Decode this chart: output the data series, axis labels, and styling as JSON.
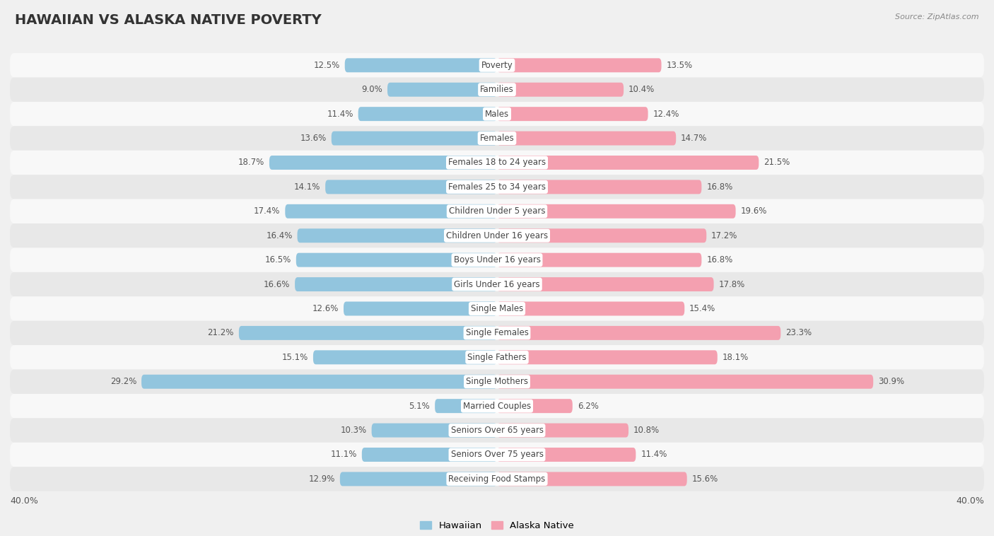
{
  "title": "HAWAIIAN VS ALASKA NATIVE POVERTY",
  "source": "Source: ZipAtlas.com",
  "categories": [
    "Poverty",
    "Families",
    "Males",
    "Females",
    "Females 18 to 24 years",
    "Females 25 to 34 years",
    "Children Under 5 years",
    "Children Under 16 years",
    "Boys Under 16 years",
    "Girls Under 16 years",
    "Single Males",
    "Single Females",
    "Single Fathers",
    "Single Mothers",
    "Married Couples",
    "Seniors Over 65 years",
    "Seniors Over 75 years",
    "Receiving Food Stamps"
  ],
  "hawaiian": [
    12.5,
    9.0,
    11.4,
    13.6,
    18.7,
    14.1,
    17.4,
    16.4,
    16.5,
    16.6,
    12.6,
    21.2,
    15.1,
    29.2,
    5.1,
    10.3,
    11.1,
    12.9
  ],
  "alaska_native": [
    13.5,
    10.4,
    12.4,
    14.7,
    21.5,
    16.8,
    19.6,
    17.2,
    16.8,
    17.8,
    15.4,
    23.3,
    18.1,
    30.9,
    6.2,
    10.8,
    11.4,
    15.6
  ],
  "hawaiian_color": "#92c5de",
  "alaska_native_color": "#f4a0b0",
  "background_color": "#f0f0f0",
  "row_color_even": "#e8e8e8",
  "row_color_odd": "#f8f8f8",
  "xlim": 40.0,
  "x_axis_label_left": "40.0%",
  "x_axis_label_right": "40.0%",
  "title_fontsize": 14,
  "label_fontsize": 8.5,
  "value_fontsize": 8.5
}
